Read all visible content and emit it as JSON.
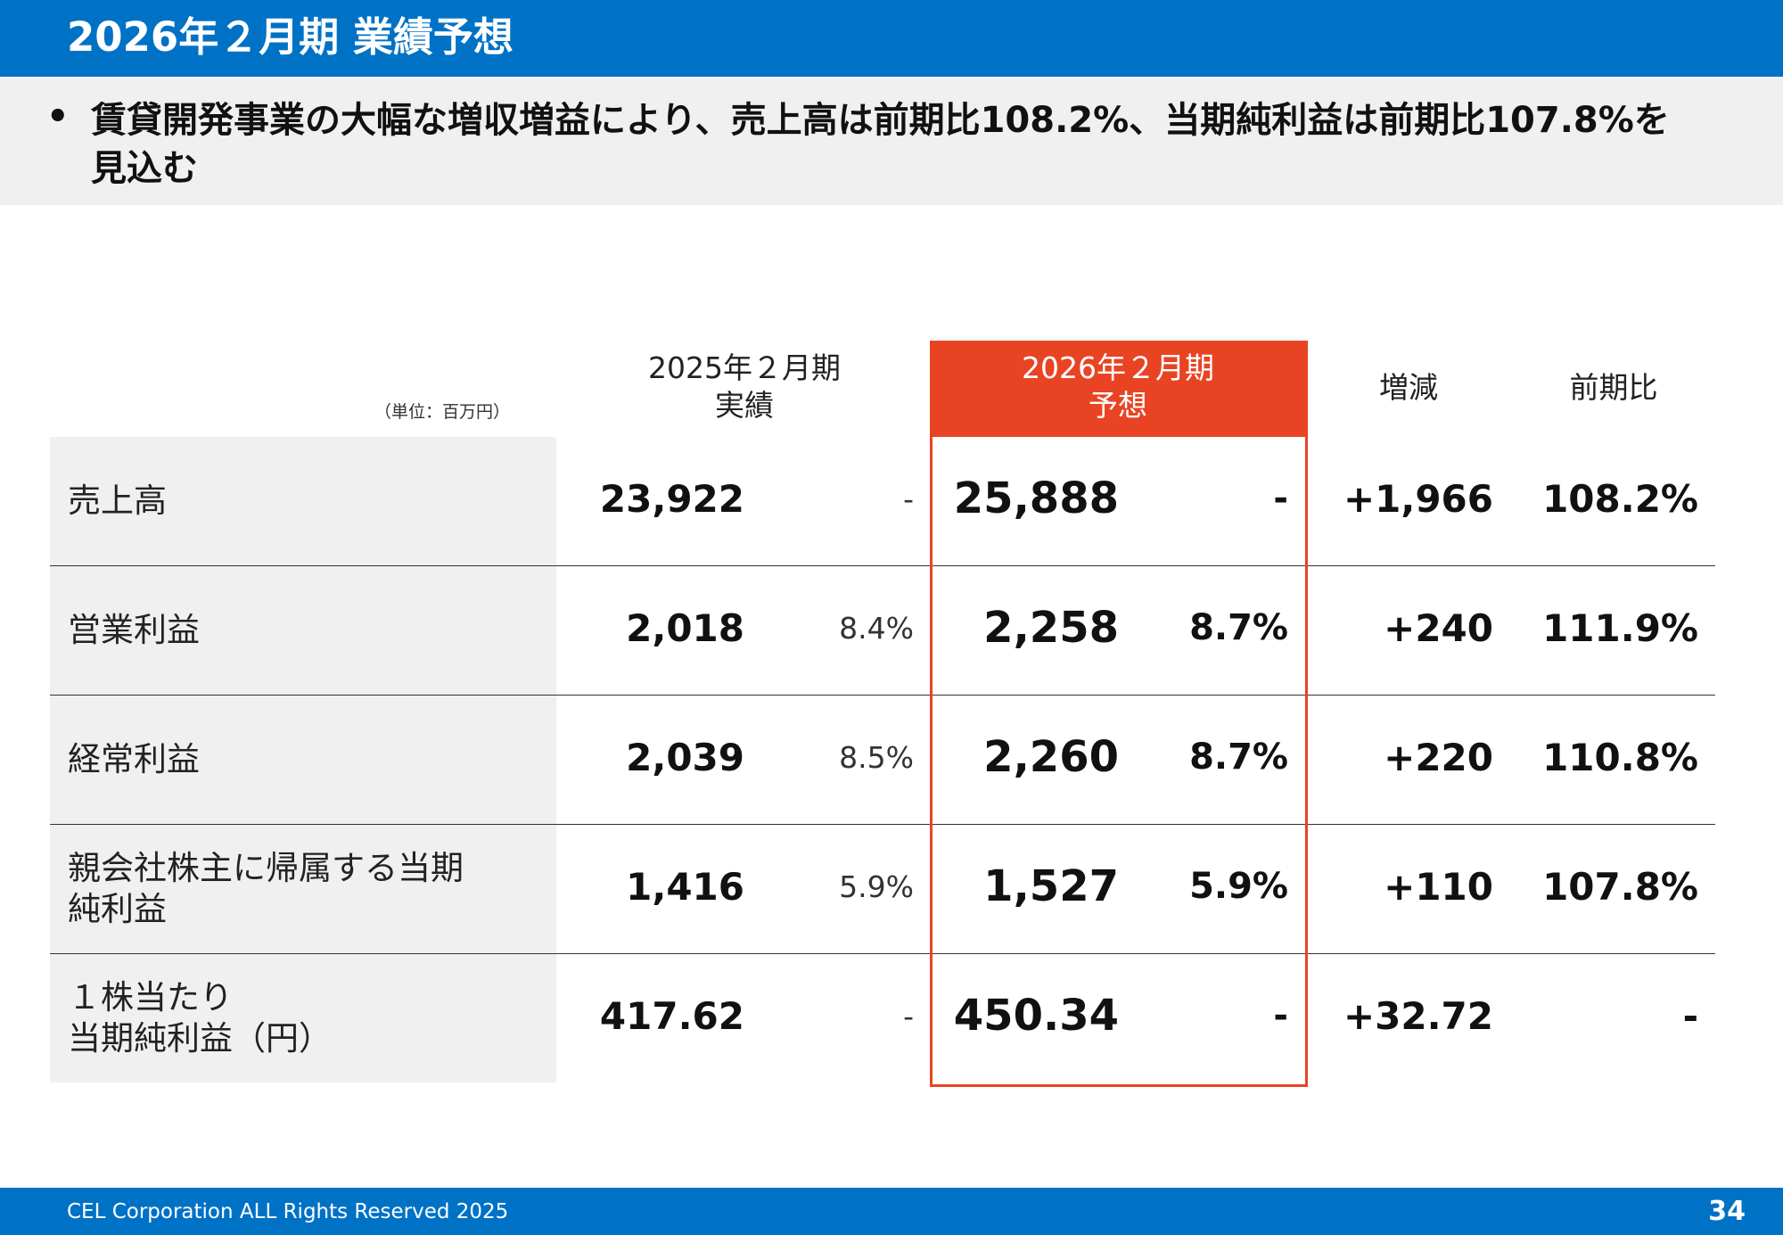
{
  "header": {
    "title": "2026年２月期 業績予想"
  },
  "summary": {
    "bullet": "•",
    "text": "賃貸開発事業の大幅な増収増益により、売上高は前期比108.2%、当期純利益は前期比107.8%を見込む"
  },
  "table": {
    "unit": "（単位：百万円）",
    "headers": {
      "actual": "2025年２月期\n実績",
      "forecast": "2026年２月期\n予想",
      "diff": "増減",
      "ratio": "前期比"
    },
    "rows": [
      {
        "label": "売上高",
        "actual": "23,922",
        "actual_pct": "-",
        "forecast": "25,888",
        "forecast_pct": "-",
        "diff": "+1,966",
        "ratio": "108.2%"
      },
      {
        "label": "営業利益",
        "actual": "2,018",
        "actual_pct": "8.4%",
        "forecast": "2,258",
        "forecast_pct": "8.7%",
        "diff": "+240",
        "ratio": "111.9%"
      },
      {
        "label": "経常利益",
        "actual": "2,039",
        "actual_pct": "8.5%",
        "forecast": "2,260",
        "forecast_pct": "8.7%",
        "diff": "+220",
        "ratio": "110.8%"
      },
      {
        "label": "親会社株主に帰属する当期\n純利益",
        "actual": "1,416",
        "actual_pct": "5.9%",
        "forecast": "1,527",
        "forecast_pct": "5.9%",
        "diff": "+110",
        "ratio": "107.8%"
      },
      {
        "label": "１株当たり\n当期純利益（円）",
        "actual": "417.62",
        "actual_pct": "-",
        "forecast": "450.34",
        "forecast_pct": "-",
        "diff": "+32.72",
        "ratio": "-"
      }
    ]
  },
  "footer": {
    "copyright": "CEL Corporation ALL Rights Reserved 2025",
    "page": "34"
  },
  "colors": {
    "brand_blue": "#0072c6",
    "forecast_red": "#e84424",
    "band_gray": "#f0f0f0"
  }
}
